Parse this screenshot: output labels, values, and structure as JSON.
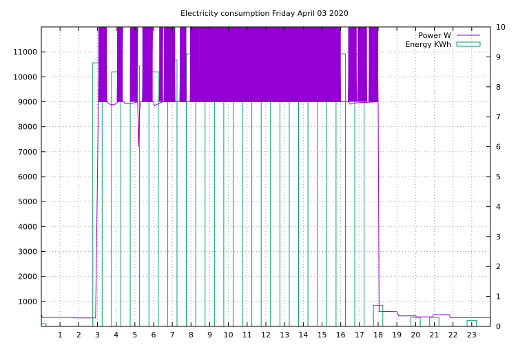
{
  "chart_data": {
    "type": "bar",
    "title": "Electricity consumption Friday April 03 2020",
    "xlabel": "",
    "ylabel": "",
    "y2label": "",
    "xlim": [
      0,
      24
    ],
    "ylim": [
      0,
      12000
    ],
    "y2lim": [
      0,
      10
    ],
    "xticks": [
      "1",
      "2",
      "3",
      "4",
      "5",
      "6",
      "7",
      "8",
      "9",
      "10",
      "11",
      "12",
      "13",
      "14",
      "15",
      "16",
      "17",
      "18",
      "19",
      "20",
      "21",
      "22",
      "23"
    ],
    "yticks": [
      "1000",
      "2000",
      "3000",
      "4000",
      "5000",
      "6000",
      "7000",
      "8000",
      "9000",
      "10000",
      "11000"
    ],
    "y2ticks": [
      "0",
      "1",
      "2",
      "3",
      "4",
      "5",
      "6",
      "7",
      "8",
      "9",
      "10"
    ],
    "grid": true,
    "legend_position": "top-right",
    "colors": {
      "power": "#9400d3",
      "energy": "#009e73",
      "axis": "#000000"
    },
    "series": [
      {
        "name": "Power W",
        "type": "line",
        "axis": "y",
        "baseline": [
          [
            0,
            470
          ],
          [
            0.05,
            360
          ],
          [
            1.7,
            360
          ],
          [
            1.75,
            340
          ],
          [
            2.9,
            340
          ],
          [
            3.05,
            9000
          ],
          [
            3.5,
            9000
          ],
          [
            3.7,
            8880
          ],
          [
            3.9,
            8880
          ],
          [
            4.1,
            9000
          ],
          [
            4.4,
            9000
          ],
          [
            4.5,
            8920
          ],
          [
            4.8,
            8930
          ],
          [
            5.15,
            9000
          ],
          [
            5.2,
            7200
          ],
          [
            5.25,
            8650
          ],
          [
            5.3,
            9000
          ],
          [
            6.0,
            9000
          ],
          [
            6.05,
            8840
          ],
          [
            6.2,
            8900
          ],
          [
            6.5,
            9000
          ],
          [
            16.4,
            9000
          ],
          [
            16.5,
            8900
          ],
          [
            16.7,
            8950
          ],
          [
            18.0,
            9000
          ],
          [
            18.05,
            600
          ],
          [
            19.0,
            590
          ],
          [
            19.1,
            420
          ],
          [
            20.0,
            420
          ],
          [
            20.05,
            380
          ],
          [
            20.9,
            380
          ],
          [
            20.95,
            470
          ],
          [
            21.8,
            470
          ],
          [
            21.85,
            350
          ],
          [
            24,
            350
          ]
        ],
        "high_cycling_bands": [
          [
            3.05,
            3.5
          ],
          [
            4.05,
            4.35
          ],
          [
            4.75,
            5.15
          ],
          [
            5.4,
            5.95
          ],
          [
            6.3,
            6.5
          ],
          [
            6.55,
            7.15
          ],
          [
            7.4,
            7.75
          ],
          [
            7.95,
            8.45
          ],
          [
            8.45,
            16.0
          ],
          [
            16.4,
            16.85
          ],
          [
            16.9,
            17.4
          ],
          [
            17.5,
            18.0
          ]
        ],
        "peak_value": 12000
      },
      {
        "name": "Energy KWh",
        "type": "bar",
        "axis": "y2",
        "bar_width_hours": 0.5,
        "values": [
          0.09,
          0,
          0,
          8.8,
          8.5,
          8.7,
          8.5,
          8.9,
          9.1,
          9.3,
          9.4,
          9.4,
          9.2,
          9.1,
          9.2,
          9.4,
          9.1,
          9.1,
          0.7,
          0,
          0.3,
          0.3,
          0,
          0.2
        ]
      }
    ]
  }
}
